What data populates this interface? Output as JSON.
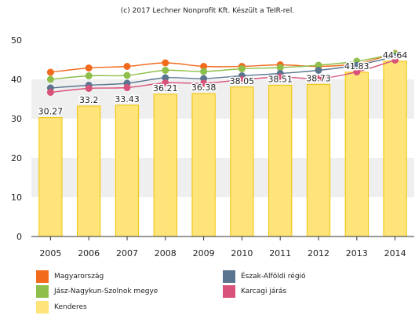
{
  "credit": "(c) 2017 Lechner Nonprofit Kft. Készült a TeIR-rel.",
  "chart_data": {
    "type": "bar",
    "categories": [
      "2005",
      "2006",
      "2007",
      "2008",
      "2009",
      "2010",
      "2011",
      "2012",
      "2013",
      "2014"
    ],
    "ylim": [
      0,
      50
    ],
    "yticks": [
      0,
      10,
      20,
      30,
      40,
      50
    ],
    "bar_series": {
      "name": "Kenderes",
      "color": "#ffe47a",
      "values": [
        30.27,
        33.2,
        33.43,
        36.21,
        36.38,
        38.05,
        38.51,
        38.73,
        41.83,
        44.64
      ],
      "labels": [
        "30.27",
        "33.2",
        "33.43",
        "36.21",
        "36.38",
        "38.05",
        "38.51",
        "38.73",
        "41.83",
        "44.64"
      ]
    },
    "line_series": [
      {
        "name": "Magyarország",
        "color": "#f26b1d",
        "values": [
          41.8,
          42.9,
          43.3,
          44.2,
          43.3,
          43.3,
          43.7,
          43.3,
          44.0,
          46.6
        ]
      },
      {
        "name": "Jász-Nagykun-Szolnok megye",
        "color": "#8dbf4a",
        "values": [
          40.0,
          40.9,
          41.0,
          42.3,
          42.0,
          42.7,
          43.0,
          43.6,
          44.6,
          46.5
        ]
      },
      {
        "name": "Észak-Alföldi régió",
        "color": "#5b7590",
        "values": [
          37.8,
          38.5,
          39.0,
          40.4,
          40.2,
          40.9,
          41.5,
          42.3,
          43.6,
          45.8
        ]
      },
      {
        "name": "Karcagi járás",
        "color": "#d9527a",
        "values": [
          36.7,
          37.7,
          37.9,
          39.1,
          39.0,
          39.9,
          40.6,
          40.2,
          41.9,
          44.9
        ]
      }
    ],
    "legend": [
      {
        "name": "Magyarország",
        "color": "#f26b1d"
      },
      {
        "name": "Észak-Alföldi régió",
        "color": "#5b7590"
      },
      {
        "name": "Jász-Nagykun-Szolnok megye",
        "color": "#8dbf4a"
      },
      {
        "name": "Karcagi járás",
        "color": "#d9527a"
      },
      {
        "name": "Kenderes",
        "color": "#ffe47a"
      }
    ]
  }
}
